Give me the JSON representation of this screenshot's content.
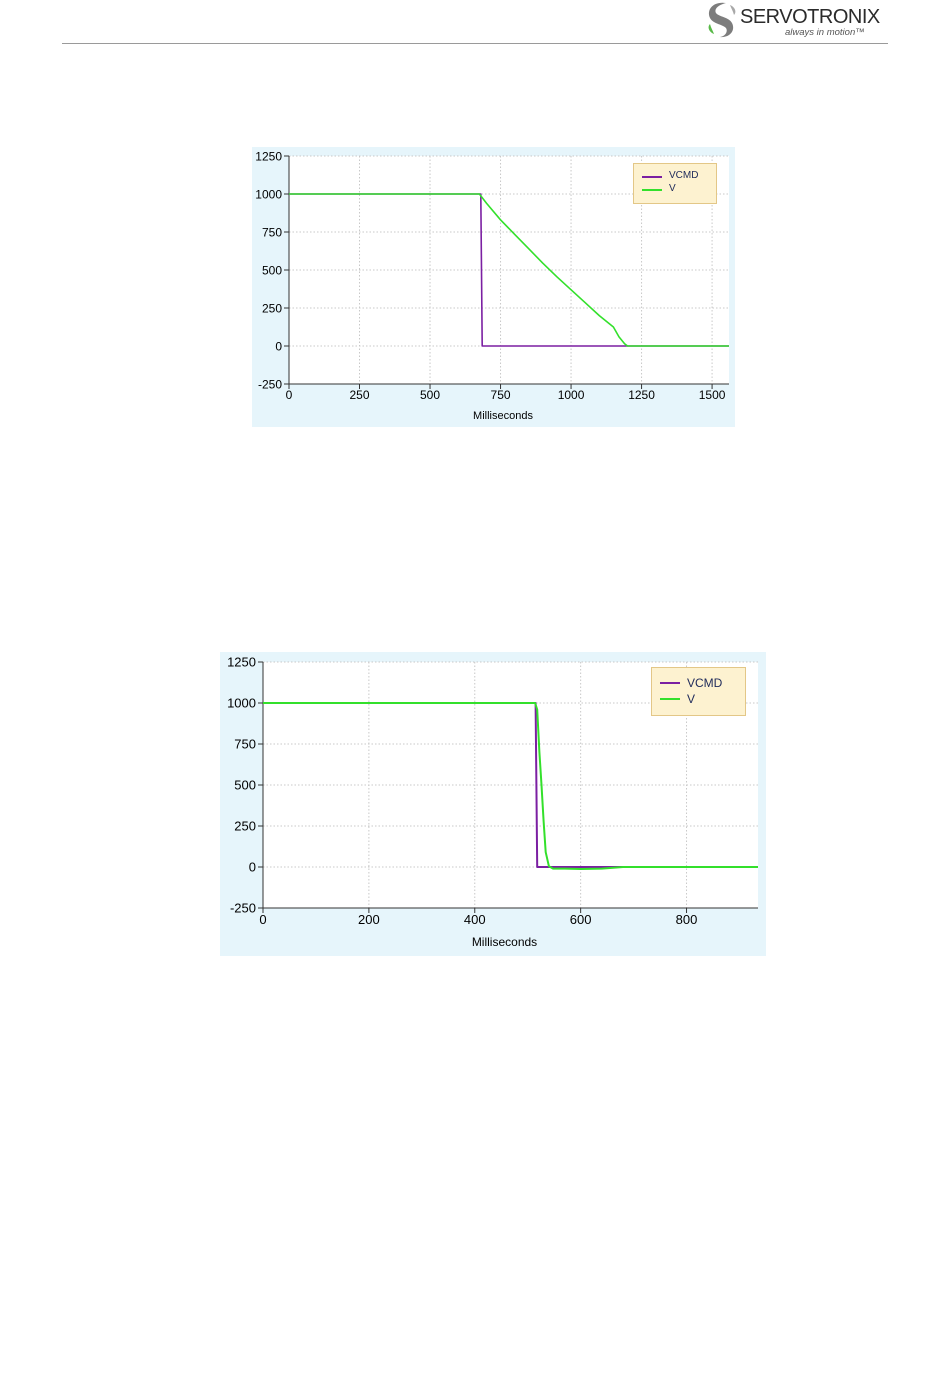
{
  "header": {
    "logo_name": "SERVOTRONIX",
    "logo_tagline": "always in motion™"
  },
  "chart_data": [
    {
      "type": "line",
      "xlabel": "Milliseconds",
      "ylabel": "",
      "xlim": [
        0,
        1560
      ],
      "ylim": [
        -250,
        1250
      ],
      "xticks": [
        0,
        250,
        500,
        750,
        1000,
        1250,
        1500
      ],
      "yticks": [
        1250,
        1000,
        750,
        500,
        250,
        0,
        -250
      ],
      "grid": true,
      "legend_position": "top-right",
      "series": [
        {
          "name": "VCMD",
          "color": "#7b1fa2",
          "points": [
            [
              0,
              1000
            ],
            [
              680,
              1000
            ],
            [
              685,
              0
            ],
            [
              1560,
              0
            ]
          ]
        },
        {
          "name": "V",
          "color": "#33e02b",
          "points": [
            [
              0,
              1000
            ],
            [
              675,
              1000
            ],
            [
              700,
              940
            ],
            [
              750,
              830
            ],
            [
              800,
              735
            ],
            [
              850,
              640
            ],
            [
              900,
              545
            ],
            [
              950,
              455
            ],
            [
              1000,
              370
            ],
            [
              1050,
              285
            ],
            [
              1100,
              200
            ],
            [
              1150,
              125
            ],
            [
              1170,
              60
            ],
            [
              1190,
              15
            ],
            [
              1200,
              0
            ],
            [
              1560,
              0
            ]
          ]
        }
      ]
    },
    {
      "type": "line",
      "xlabel": "Milliseconds",
      "ylabel": "",
      "xlim": [
        0,
        935
      ],
      "ylim": [
        -250,
        1250
      ],
      "xticks": [
        0,
        200,
        400,
        600,
        800
      ],
      "yticks": [
        1250,
        1000,
        750,
        500,
        250,
        0,
        -250
      ],
      "grid": true,
      "legend_position": "top-right",
      "series": [
        {
          "name": "VCMD",
          "color": "#7b1fa2",
          "points": [
            [
              0,
              1000
            ],
            [
              515,
              1000
            ],
            [
              518,
              0
            ],
            [
              935,
              0
            ]
          ]
        },
        {
          "name": "V",
          "color": "#33e02b",
          "points": [
            [
              0,
              1000
            ],
            [
              514,
              1000
            ],
            [
              518,
              960
            ],
            [
              522,
              700
            ],
            [
              526,
              500
            ],
            [
              530,
              280
            ],
            [
              534,
              90
            ],
            [
              540,
              5
            ],
            [
              548,
              -10
            ],
            [
              570,
              -10
            ],
            [
              600,
              -12
            ],
            [
              640,
              -10
            ],
            [
              680,
              0
            ],
            [
              935,
              0
            ]
          ]
        }
      ]
    }
  ]
}
